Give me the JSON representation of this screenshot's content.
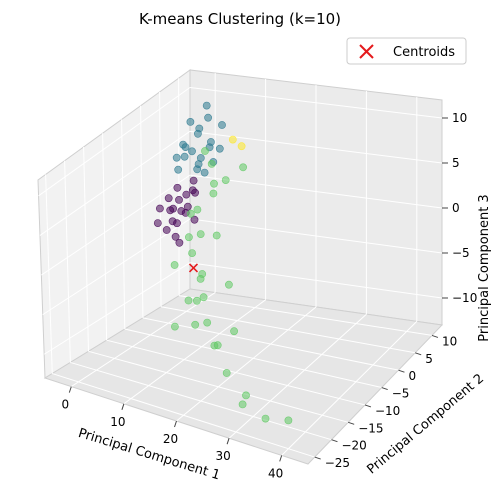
{
  "chart_data": {
    "type": "scatter",
    "title": "K-means Clustering (k=10)",
    "xlabel": "Principal Component 1",
    "ylabel": "Principal Component 2",
    "zlabel": "Principal Component 3",
    "x_ticks": [
      "0",
      "10",
      "20",
      "30",
      "40"
    ],
    "y_ticks": [
      "−25",
      "−20",
      "−15",
      "−10",
      "−5",
      "0",
      "5",
      "10"
    ],
    "z_ticks": [
      "−10",
      "−5",
      "0",
      "5",
      "10"
    ],
    "xlim": [
      -5,
      45
    ],
    "ylim": [
      -27,
      13
    ],
    "zlim": [
      -13,
      12
    ],
    "grid": true,
    "legend_position": "top-right",
    "legend": [
      {
        "label": "Centroids",
        "marker": "x",
        "color": "#e41a1c"
      }
    ],
    "colors": {
      "purple": "#440154",
      "teal": "#2a788e",
      "green": "#5ec962",
      "yellow": "#fde725",
      "centroid": "#e41a1c"
    },
    "centroids": [
      {
        "x": 5,
        "y": 0,
        "z": -6
      }
    ],
    "series": [
      {
        "color": "purple",
        "points": [
          [
            2,
            -2,
            1
          ],
          [
            3,
            -1,
            2
          ],
          [
            4,
            -3,
            0
          ],
          [
            2,
            0,
            3
          ],
          [
            5,
            -2,
            1
          ],
          [
            1,
            -1,
            2
          ],
          [
            3,
            1,
            2
          ],
          [
            4,
            0,
            1
          ],
          [
            2,
            -3,
            -1
          ],
          [
            3,
            -2,
            -2
          ],
          [
            1,
            -4,
            0
          ],
          [
            5,
            0,
            3
          ],
          [
            4,
            2,
            2
          ],
          [
            2,
            1,
            0
          ],
          [
            3,
            -1,
            -3
          ],
          [
            6,
            -1,
            0
          ],
          [
            1,
            0,
            -1
          ],
          [
            4,
            -4,
            2
          ],
          [
            0,
            -2,
            1
          ],
          [
            3,
            3,
            3
          ]
        ]
      },
      {
        "color": "teal",
        "points": [
          [
            2,
            4,
            6
          ],
          [
            3,
            5,
            5
          ],
          [
            1,
            3,
            7
          ],
          [
            4,
            6,
            6
          ],
          [
            2,
            6,
            8
          ],
          [
            3,
            4,
            4
          ],
          [
            0,
            5,
            6
          ],
          [
            5,
            5,
            7
          ],
          [
            1,
            7,
            7
          ],
          [
            4,
            3,
            5
          ],
          [
            2,
            2,
            6
          ],
          [
            3,
            7,
            9
          ],
          [
            5,
            8,
            8
          ],
          [
            1,
            5,
            9
          ],
          [
            0,
            3,
            4
          ],
          [
            4,
            7,
            4
          ],
          [
            6,
            6,
            6
          ],
          [
            2,
            8,
            10
          ],
          [
            3,
            6,
            3
          ],
          [
            -1,
            4,
            5
          ]
        ]
      },
      {
        "color": "green",
        "points": [
          [
            6,
            -2,
            1
          ],
          [
            7,
            -4,
            -1
          ],
          [
            8,
            -3,
            2
          ],
          [
            9,
            -6,
            -2
          ],
          [
            10,
            -5,
            0
          ],
          [
            7,
            -8,
            -3
          ],
          [
            12,
            -8,
            -4
          ],
          [
            11,
            -10,
            -6
          ],
          [
            14,
            -12,
            -5
          ],
          [
            13,
            -9,
            -3
          ],
          [
            15,
            -14,
            -7
          ],
          [
            16,
            -13,
            -4
          ],
          [
            18,
            -15,
            -6
          ],
          [
            20,
            -16,
            -8
          ],
          [
            22,
            -18,
            -7
          ],
          [
            25,
            -20,
            -9
          ],
          [
            9,
            0,
            3
          ],
          [
            10,
            2,
            4
          ],
          [
            12,
            4,
            5
          ],
          [
            8,
            1,
            6
          ],
          [
            6,
            2,
            7
          ],
          [
            7,
            3,
            3
          ],
          [
            11,
            -2,
            -1
          ],
          [
            9,
            -11,
            -9
          ],
          [
            30,
            -22,
            -10
          ],
          [
            35,
            -24,
            -11
          ],
          [
            28,
            -20,
            -12
          ],
          [
            40,
            -25,
            -10
          ],
          [
            17,
            -6,
            -10
          ],
          [
            14,
            -3,
            -6
          ]
        ]
      },
      {
        "color": "yellow",
        "points": [
          [
            10,
            4,
            8
          ],
          [
            11,
            5,
            7
          ]
        ]
      }
    ]
  }
}
